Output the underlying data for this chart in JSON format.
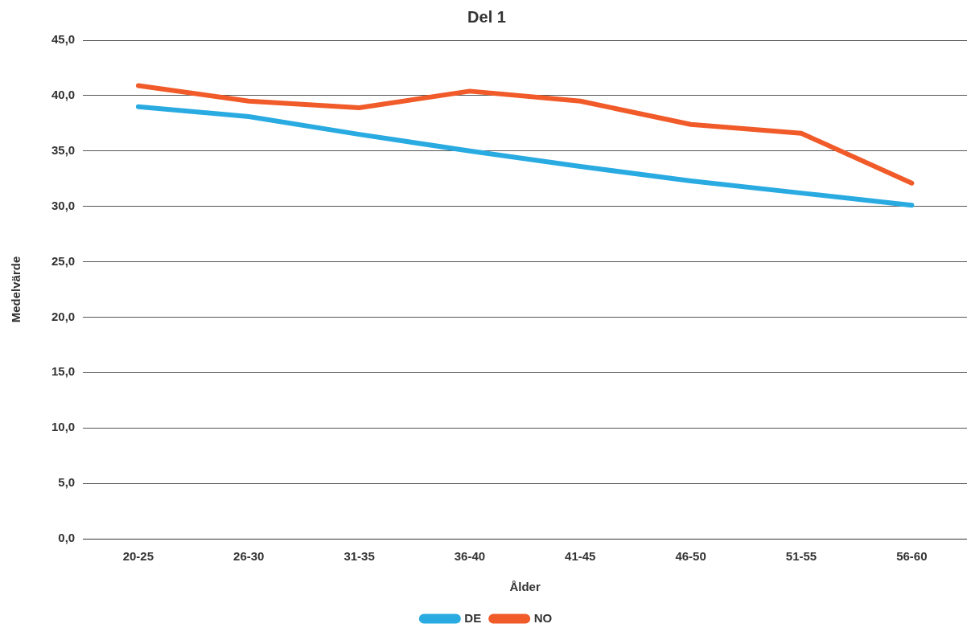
{
  "chart_data": {
    "type": "line",
    "title": "Del 1",
    "xlabel": "Ålder",
    "ylabel": "Medelvärde",
    "categories": [
      "20-25",
      "26-30",
      "31-35",
      "36-40",
      "41-45",
      "46-50",
      "51-55",
      "56-60"
    ],
    "series": [
      {
        "name": "DE",
        "color": "#29abe2",
        "values": [
          39.0,
          38.1,
          36.5,
          35.0,
          33.6,
          32.3,
          31.2,
          30.1
        ]
      },
      {
        "name": "NO",
        "color": "#f15a29",
        "values": [
          40.9,
          39.5,
          38.9,
          40.4,
          39.5,
          37.4,
          36.6,
          32.1
        ]
      }
    ],
    "ylim": [
      0,
      45
    ],
    "yticks": [
      {
        "value": 0,
        "label": "0,0"
      },
      {
        "value": 5,
        "label": "5,0"
      },
      {
        "value": 10,
        "label": "10,0"
      },
      {
        "value": 15,
        "label": "15,0"
      },
      {
        "value": 20,
        "label": "20,0"
      },
      {
        "value": 25,
        "label": "25,0"
      },
      {
        "value": 30,
        "label": "30,0"
      },
      {
        "value": 35,
        "label": "35,0"
      },
      {
        "value": 40,
        "label": "40,0"
      },
      {
        "value": 45,
        "label": "45,0"
      }
    ],
    "grid": "y",
    "legend": "bottom",
    "marker": "none",
    "line_style": "solid"
  }
}
